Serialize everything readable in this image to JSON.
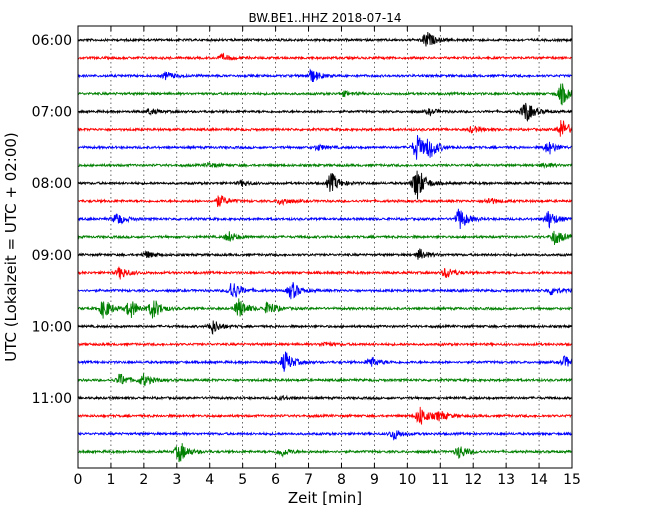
{
  "chart_data": {
    "type": "line",
    "title": "BW.BE1..HHZ 2018-07-14",
    "xlabel": "Zeit  [min]",
    "ylabel": "UTC (Lokalzeit = UTC + 02:00)",
    "xlim": [
      0,
      15
    ],
    "x_ticks": [
      "0",
      "1",
      "2",
      "3",
      "4",
      "5",
      "6",
      "7",
      "8",
      "9",
      "10",
      "11",
      "12",
      "13",
      "14",
      "15"
    ],
    "y_tick_labels": [
      "06:00",
      "07:00",
      "08:00",
      "09:00",
      "10:00",
      "11:00"
    ],
    "trace_colors": [
      "#000000",
      "#ff0000",
      "#0000ff",
      "#008000"
    ],
    "grid": true,
    "traces": [
      {
        "start": "06:00",
        "events": [
          [
            10.6,
            0.75
          ]
        ]
      },
      {
        "start": "06:15",
        "events": [
          [
            4.4,
            0.3
          ]
        ]
      },
      {
        "start": "06:30",
        "events": [
          [
            2.7,
            0.35
          ],
          [
            7.1,
            0.6
          ]
        ]
      },
      {
        "start": "06:45",
        "events": [
          [
            8.1,
            0.2
          ],
          [
            14.7,
            0.95
          ]
        ]
      },
      {
        "start": "07:00",
        "events": [
          [
            2.2,
            0.25
          ],
          [
            10.7,
            0.25
          ],
          [
            13.6,
            1.0
          ]
        ]
      },
      {
        "start": "07:15",
        "events": [
          [
            12.0,
            0.3
          ],
          [
            14.7,
            0.9
          ]
        ]
      },
      {
        "start": "07:30",
        "events": [
          [
            7.3,
            0.25
          ],
          [
            10.3,
            1.2
          ],
          [
            10.7,
            0.8
          ],
          [
            14.3,
            0.6
          ]
        ]
      },
      {
        "start": "07:45",
        "events": [
          [
            4.0,
            0.2
          ],
          [
            14.2,
            0.2
          ]
        ]
      },
      {
        "start": "08:00",
        "events": [
          [
            5.0,
            0.25
          ],
          [
            7.7,
            0.9
          ],
          [
            10.3,
            1.6
          ]
        ]
      },
      {
        "start": "08:15",
        "events": [
          [
            4.3,
            0.55
          ],
          [
            6.2,
            0.35
          ],
          [
            12.5,
            0.3
          ]
        ]
      },
      {
        "start": "08:30",
        "events": [
          [
            1.2,
            0.55
          ],
          [
            11.6,
            1.0
          ],
          [
            14.3,
            0.8
          ]
        ]
      },
      {
        "start": "08:45",
        "events": [
          [
            4.6,
            0.45
          ],
          [
            14.5,
            0.7
          ]
        ]
      },
      {
        "start": "09:00",
        "events": [
          [
            2.1,
            0.3
          ],
          [
            10.4,
            0.5
          ]
        ]
      },
      {
        "start": "09:15",
        "events": [
          [
            1.3,
            0.55
          ],
          [
            11.2,
            0.5
          ]
        ]
      },
      {
        "start": "09:30",
        "events": [
          [
            4.7,
            0.9
          ],
          [
            6.5,
            0.8
          ],
          [
            14.4,
            0.4
          ]
        ]
      },
      {
        "start": "09:45",
        "events": [
          [
            0.8,
            0.9
          ],
          [
            1.6,
            0.85
          ],
          [
            2.3,
            0.9
          ],
          [
            4.9,
            0.9
          ],
          [
            5.8,
            0.6
          ]
        ]
      },
      {
        "start": "10:00",
        "events": [
          [
            4.1,
            0.65
          ]
        ]
      },
      {
        "start": "10:15",
        "events": [
          [
            7.5,
            0.2
          ]
        ]
      },
      {
        "start": "10:30",
        "events": [
          [
            6.3,
            0.95
          ],
          [
            8.9,
            0.5
          ],
          [
            14.8,
            0.5
          ]
        ]
      },
      {
        "start": "10:45",
        "events": [
          [
            1.3,
            0.55
          ],
          [
            2.0,
            0.55
          ]
        ]
      },
      {
        "start": "11:00",
        "events": [
          [
            6.2,
            0.15
          ]
        ]
      },
      {
        "start": "11:15",
        "events": [
          [
            10.4,
            0.9
          ],
          [
            11.0,
            0.4
          ]
        ]
      },
      {
        "start": "11:30",
        "events": [
          [
            9.6,
            0.5
          ]
        ]
      },
      {
        "start": "11:45",
        "events": [
          [
            3.1,
            0.95
          ],
          [
            6.2,
            0.4
          ],
          [
            11.6,
            0.6
          ]
        ]
      }
    ]
  }
}
